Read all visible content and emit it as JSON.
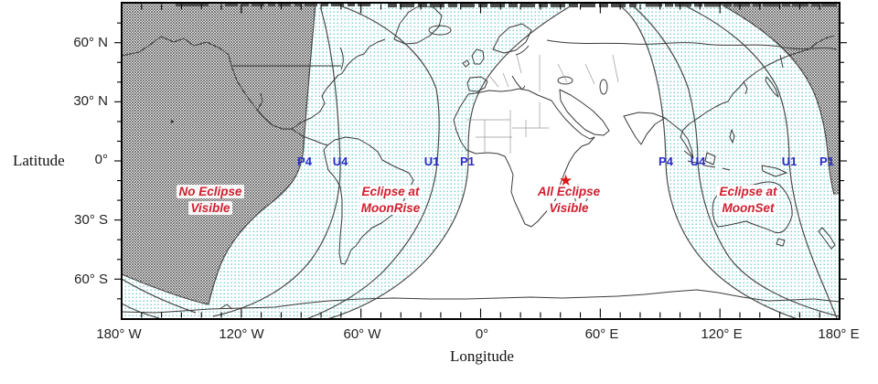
{
  "axes": {
    "y_title": "Latitude",
    "x_title": "Longitude",
    "lat_ticks": [
      {
        "label": "60° N"
      },
      {
        "label": "30° N"
      },
      {
        "label": "0°"
      },
      {
        "label": "30° S"
      },
      {
        "label": "60° S"
      }
    ],
    "lon_ticks": [
      {
        "label": "180° W"
      },
      {
        "label": "120° W"
      },
      {
        "label": "60° W"
      },
      {
        "label": "0°"
      },
      {
        "label": "60° E"
      },
      {
        "label": "120° E"
      },
      {
        "label": "180° E"
      }
    ]
  },
  "regions": {
    "no_eclipse": {
      "line1": "No Eclipse",
      "line2": "Visible"
    },
    "moonrise": {
      "line1": "Eclipse at",
      "line2": "MoonRise"
    },
    "all_visible": {
      "line1": "All Eclipse",
      "line2": "Visible"
    },
    "moonset": {
      "line1": "Eclipse at",
      "line2": "MoonSet"
    }
  },
  "contact_labels": {
    "west": [
      {
        "label": "P4"
      },
      {
        "label": "U4"
      },
      {
        "label": "U1"
      },
      {
        "label": "P1"
      }
    ],
    "east": [
      {
        "label": "P4"
      },
      {
        "label": "U4"
      },
      {
        "label": "U1"
      },
      {
        "label": "P1"
      }
    ]
  },
  "marker": {
    "glyph": "★"
  },
  "colors": {
    "label_red": "#cf2030",
    "label_blue": "#2a2ac8",
    "cyan_dot": "#74cccc",
    "gray_halftone": "#2a2a2a",
    "coastline": "#3a3a3a",
    "frame": "#000000"
  }
}
